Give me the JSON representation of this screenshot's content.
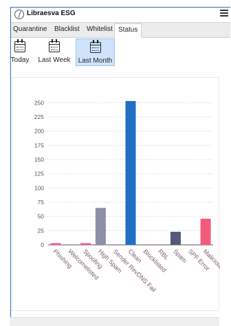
{
  "app": {
    "title": "Libraesva ESG",
    "logo_icon": "libraesva-logo-icon",
    "menu_icon": "hamburger-menu-icon"
  },
  "tabs": [
    {
      "label": "Quarantine",
      "active": false
    },
    {
      "label": "Blacklist",
      "active": false
    },
    {
      "label": "Whitelist",
      "active": false
    },
    {
      "label": "Status",
      "active": true
    }
  ],
  "periods": [
    {
      "label": "Today",
      "icon": "calendar-icon",
      "selected": false
    },
    {
      "label": "Last Week",
      "icon": "calendar-icon",
      "selected": false
    },
    {
      "label": "Last Month",
      "icon": "calendar-icon",
      "selected": true
    }
  ],
  "chart_data": {
    "type": "bar",
    "categories": [
      "Phishing",
      "Welcomelisted",
      "Spoofing",
      "High Spam",
      "Sender RevDNS Fail",
      "Clean",
      "Blocklisted",
      "RBL",
      "Spam",
      "SPF Error",
      "Malicious"
    ],
    "values": [
      3,
      0,
      3,
      65,
      0,
      253,
      0,
      0,
      23,
      0,
      46
    ],
    "colors": [
      "#f25c7a",
      "#f25c7a",
      "#f25c7a",
      "#8e8fa6",
      "#8e8fa6",
      "#1f6fc5",
      "#1f6fc5",
      "#1f6fc5",
      "#555a7a",
      "#555a7a",
      "#f25c7a"
    ],
    "y_ticks": [
      0,
      25,
      50,
      75,
      100,
      125,
      150,
      175,
      200,
      225,
      250
    ],
    "ylim": [
      0,
      265
    ],
    "grid": true,
    "legend": false
  }
}
